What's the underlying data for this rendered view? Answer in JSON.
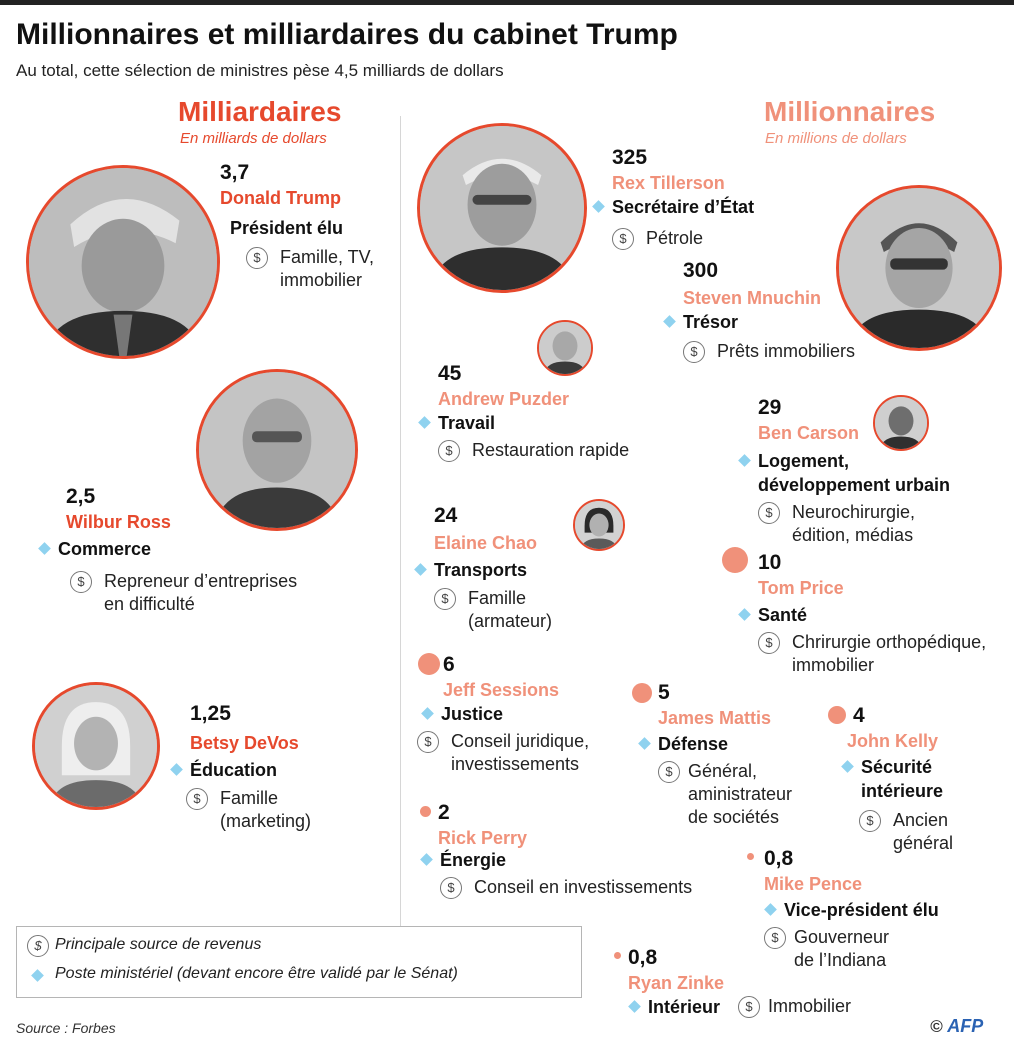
{
  "header": {
    "title": "Millionnaires et milliardaires du cabinet Trump",
    "subtitle": "Au total, cette sélection de ministres pèse 4,5 milliards de dollars"
  },
  "sections": {
    "billionaires": {
      "title": "Milliardaires",
      "unit": "En milliards de dollars"
    },
    "millionaires": {
      "title": "Millionnaires",
      "unit": "En millions de dollars"
    }
  },
  "people": {
    "trump": {
      "amount": "3,7",
      "name": "Donald Trump",
      "role": "Président élu",
      "source_1": "Famille, TV,",
      "source_2": "immobilier"
    },
    "ross": {
      "amount": "2,5",
      "name": "Wilbur Ross",
      "role": "Commerce",
      "source_1": "Repreneur d’entreprises",
      "source_2": "en difficulté"
    },
    "devos": {
      "amount": "1,25",
      "name": "Betsy DeVos",
      "role": "Éducation",
      "source_1": "Famille",
      "source_2": "(marketing)"
    },
    "tillerson": {
      "amount": "325",
      "name": "Rex Tillerson",
      "role": "Secrétaire d’État",
      "source_1": "Pétrole"
    },
    "mnuchin": {
      "amount": "300",
      "name": "Steven Mnuchin",
      "role": "Trésor",
      "source_1": "Prêts immobiliers"
    },
    "puzder": {
      "amount": "45",
      "name": "Andrew Puzder",
      "role": "Travail",
      "source_1": "Restauration rapide"
    },
    "carson": {
      "amount": "29",
      "name": "Ben Carson",
      "role_1": "Logement,",
      "role_2": "développement urbain",
      "source_1": "Neurochirurgie,",
      "source_2": "édition, médias"
    },
    "chao": {
      "amount": "24",
      "name": "Elaine Chao",
      "role": "Transports",
      "source_1": "Famille",
      "source_2": "(armateur)"
    },
    "price": {
      "amount": "10",
      "name": "Tom Price",
      "role": "Santé",
      "source_1": "Chrirurgie orthopédique,",
      "source_2": "immobilier"
    },
    "sessions": {
      "amount": "6",
      "name": "Jeff Sessions",
      "role": "Justice",
      "source_1": "Conseil juridique,",
      "source_2": "investissements"
    },
    "mattis": {
      "amount": "5",
      "name": "James Mattis",
      "role": "Défense",
      "source_1": "Général,",
      "source_2": "aministrateur",
      "source_3": "de sociétés"
    },
    "kelly": {
      "amount": "4",
      "name": "John Kelly",
      "role_1": "Sécurité",
      "role_2": "intérieure",
      "source_1": "Ancien",
      "source_2": "général"
    },
    "perry": {
      "amount": "2",
      "name": "Rick Perry",
      "role": "Énergie",
      "source_1": "Conseil en investissements"
    },
    "pence": {
      "amount": "0,8",
      "name": "Mike Pence",
      "role": "Vice-président élu",
      "source_1": "Gouverneur",
      "source_2": "de l’Indiana"
    },
    "zinke": {
      "amount": "0,8",
      "name": "Ryan Zinke",
      "role": "Intérieur",
      "source_1": "Immobilier"
    }
  },
  "legend": {
    "dollar_symbol": "$",
    "income_label": "Principale source de revenus",
    "post_label": "Poste ministériel (devant encore être validé par le Sénat)"
  },
  "footer": {
    "source": "Source : Forbes",
    "copyright": "©",
    "logo": "AFP"
  },
  "colors": {
    "billionaire_accent": "#e6492d",
    "millionaire_accent": "#f0917a",
    "diamond": "#8fd2ef"
  }
}
